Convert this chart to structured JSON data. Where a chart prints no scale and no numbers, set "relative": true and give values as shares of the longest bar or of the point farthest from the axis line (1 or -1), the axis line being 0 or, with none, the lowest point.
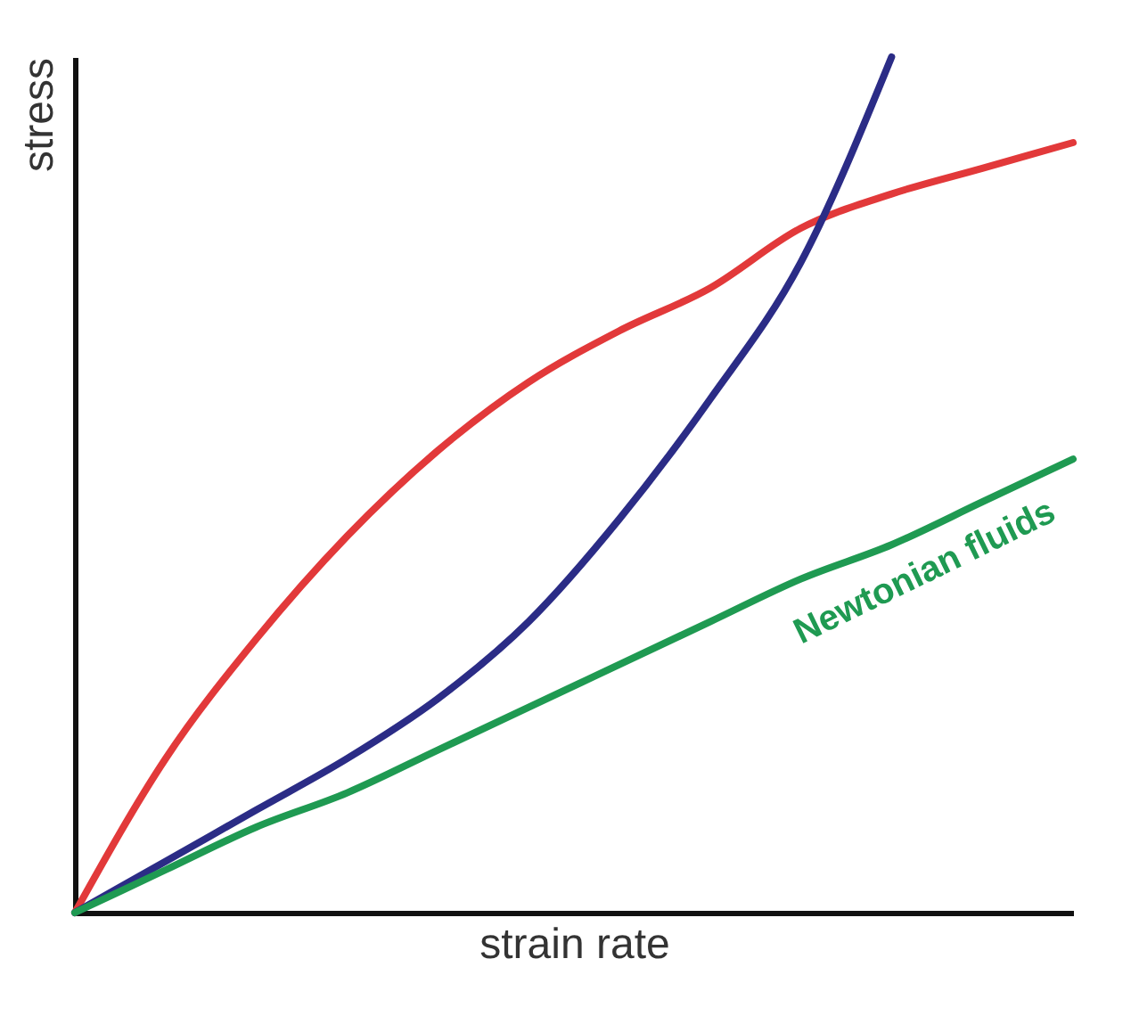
{
  "chart_data": {
    "type": "line",
    "relative": true,
    "xlabel": "strain rate",
    "ylabel": "stress",
    "legend": false,
    "grid": false,
    "line_style": "solid",
    "marker": "none",
    "categories": [
      null,
      null,
      null,
      null,
      null,
      null,
      null,
      null,
      null,
      null,
      null,
      null
    ],
    "series": [
      {
        "color": "#e2393a",
        "values": [
          0,
          0.18,
          0.32,
          0.44,
          0.54,
          0.62,
          0.68,
          0.73,
          0.8,
          0.84,
          0.87,
          0.9
        ]
      },
      {
        "color": "#2b2c86",
        "values": [
          0,
          0.06,
          0.12,
          0.18,
          0.25,
          0.34,
          0.46,
          0.6,
          0.76,
          1,
          null,
          null
        ]
      },
      {
        "name": "Newtonian fluids",
        "color": "#1f9a52",
        "values": [
          0,
          0.05,
          0.1,
          0.14,
          0.19,
          0.24,
          0.29,
          0.34,
          0.39,
          0.43,
          0.48,
          0.53
        ]
      }
    ]
  }
}
